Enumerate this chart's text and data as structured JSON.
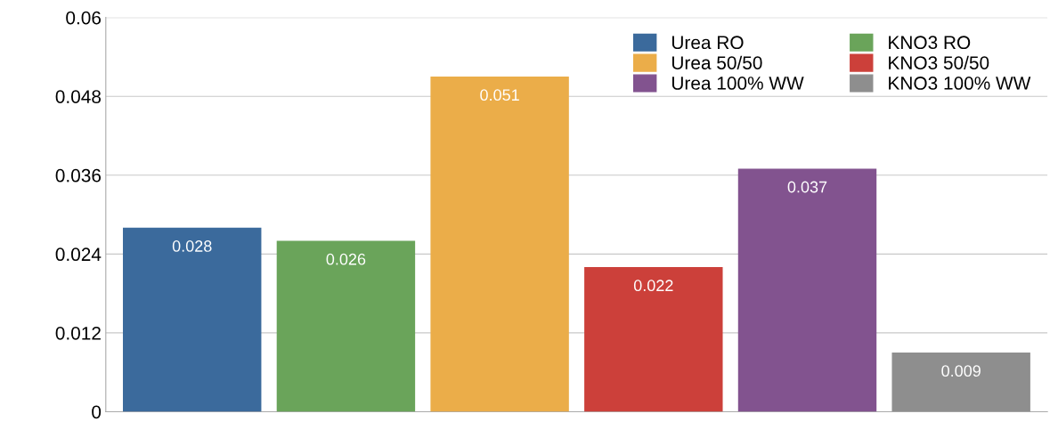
{
  "chart_data": {
    "type": "bar",
    "categories": [
      null
    ],
    "series": [
      {
        "name": "Urea RO",
        "color": "#3b6a9c",
        "values": [
          0.028
        ]
      },
      {
        "name": "KNO3 RO",
        "color": "#6aa45a",
        "values": [
          0.026
        ]
      },
      {
        "name": "Urea 50/50",
        "color": "#ebad49",
        "values": [
          0.051
        ]
      },
      {
        "name": "KNO3 50/50",
        "color": "#cc403a",
        "values": [
          0.022
        ]
      },
      {
        "name": "Urea 100% WW",
        "color": "#82538f",
        "values": [
          0.037
        ]
      },
      {
        "name": "KNO3 100% WW",
        "color": "#8e8e8e",
        "values": [
          0.009
        ]
      }
    ],
    "ylim": [
      0,
      0.06
    ],
    "yticks": [
      0,
      0.012,
      0.024,
      0.036,
      0.048,
      0.06
    ],
    "data_labels": true,
    "grid": "y",
    "legend": "top right"
  }
}
